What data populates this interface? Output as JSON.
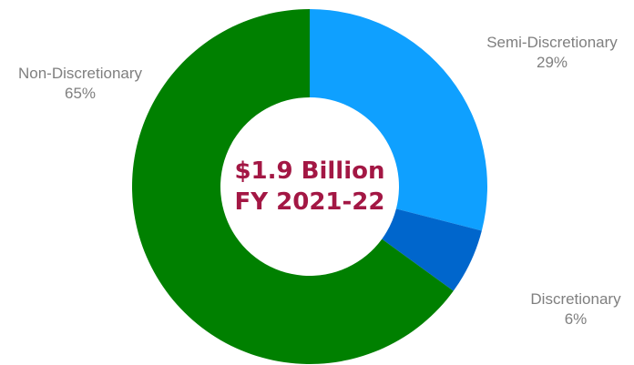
{
  "chart_data": {
    "type": "pie",
    "donut": true,
    "title": "",
    "center_label": {
      "line1": "$1.9 Billion",
      "line2": "FY 2021-22",
      "color": "#a31744"
    },
    "slices": [
      {
        "name": "Semi-Discretionary",
        "value": 29,
        "value_label": "29%",
        "color": "#0fa0ff"
      },
      {
        "name": "Discretionary",
        "value": 6,
        "value_label": "6%",
        "color": "#0066cc"
      },
      {
        "name": "Non-Discretionary",
        "value": 65,
        "value_label": "65%",
        "color": "#008000"
      }
    ]
  }
}
